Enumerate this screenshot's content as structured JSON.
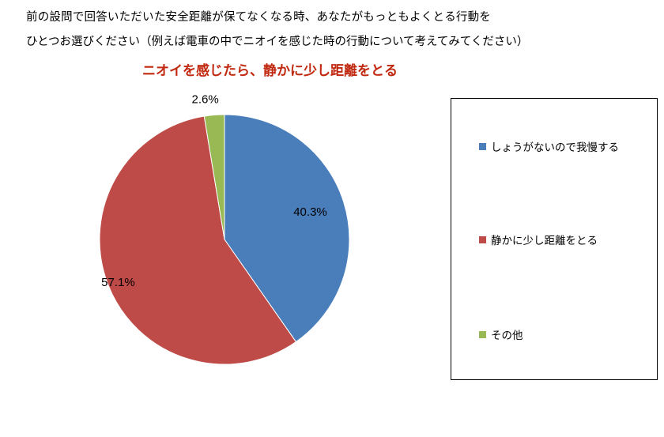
{
  "question": {
    "line1": "前の設問で回答いただいた安全距離が保てなくなる時、あなたがもっともよくとる行動を",
    "line2": "ひとつお選びください（例えば電車の中でニオイを感じた時の行動について考えてみてください）"
  },
  "chart_data": {
    "type": "pie",
    "title": "ニオイを感じたら、静かに少し距離をとる",
    "start_angle_deg": 0,
    "direction": "clockwise",
    "slices": [
      {
        "label": "しょうがないので我慢する",
        "value": 40.3,
        "display": "40.3%",
        "color": "#4a7ebb"
      },
      {
        "label": "静かに少し距離をとる",
        "value": 57.1,
        "display": "57.1%",
        "color": "#be4b48"
      },
      {
        "label": "その他",
        "value": 2.6,
        "display": "2.6%",
        "color": "#98b954"
      }
    ],
    "legend_position": "right"
  }
}
